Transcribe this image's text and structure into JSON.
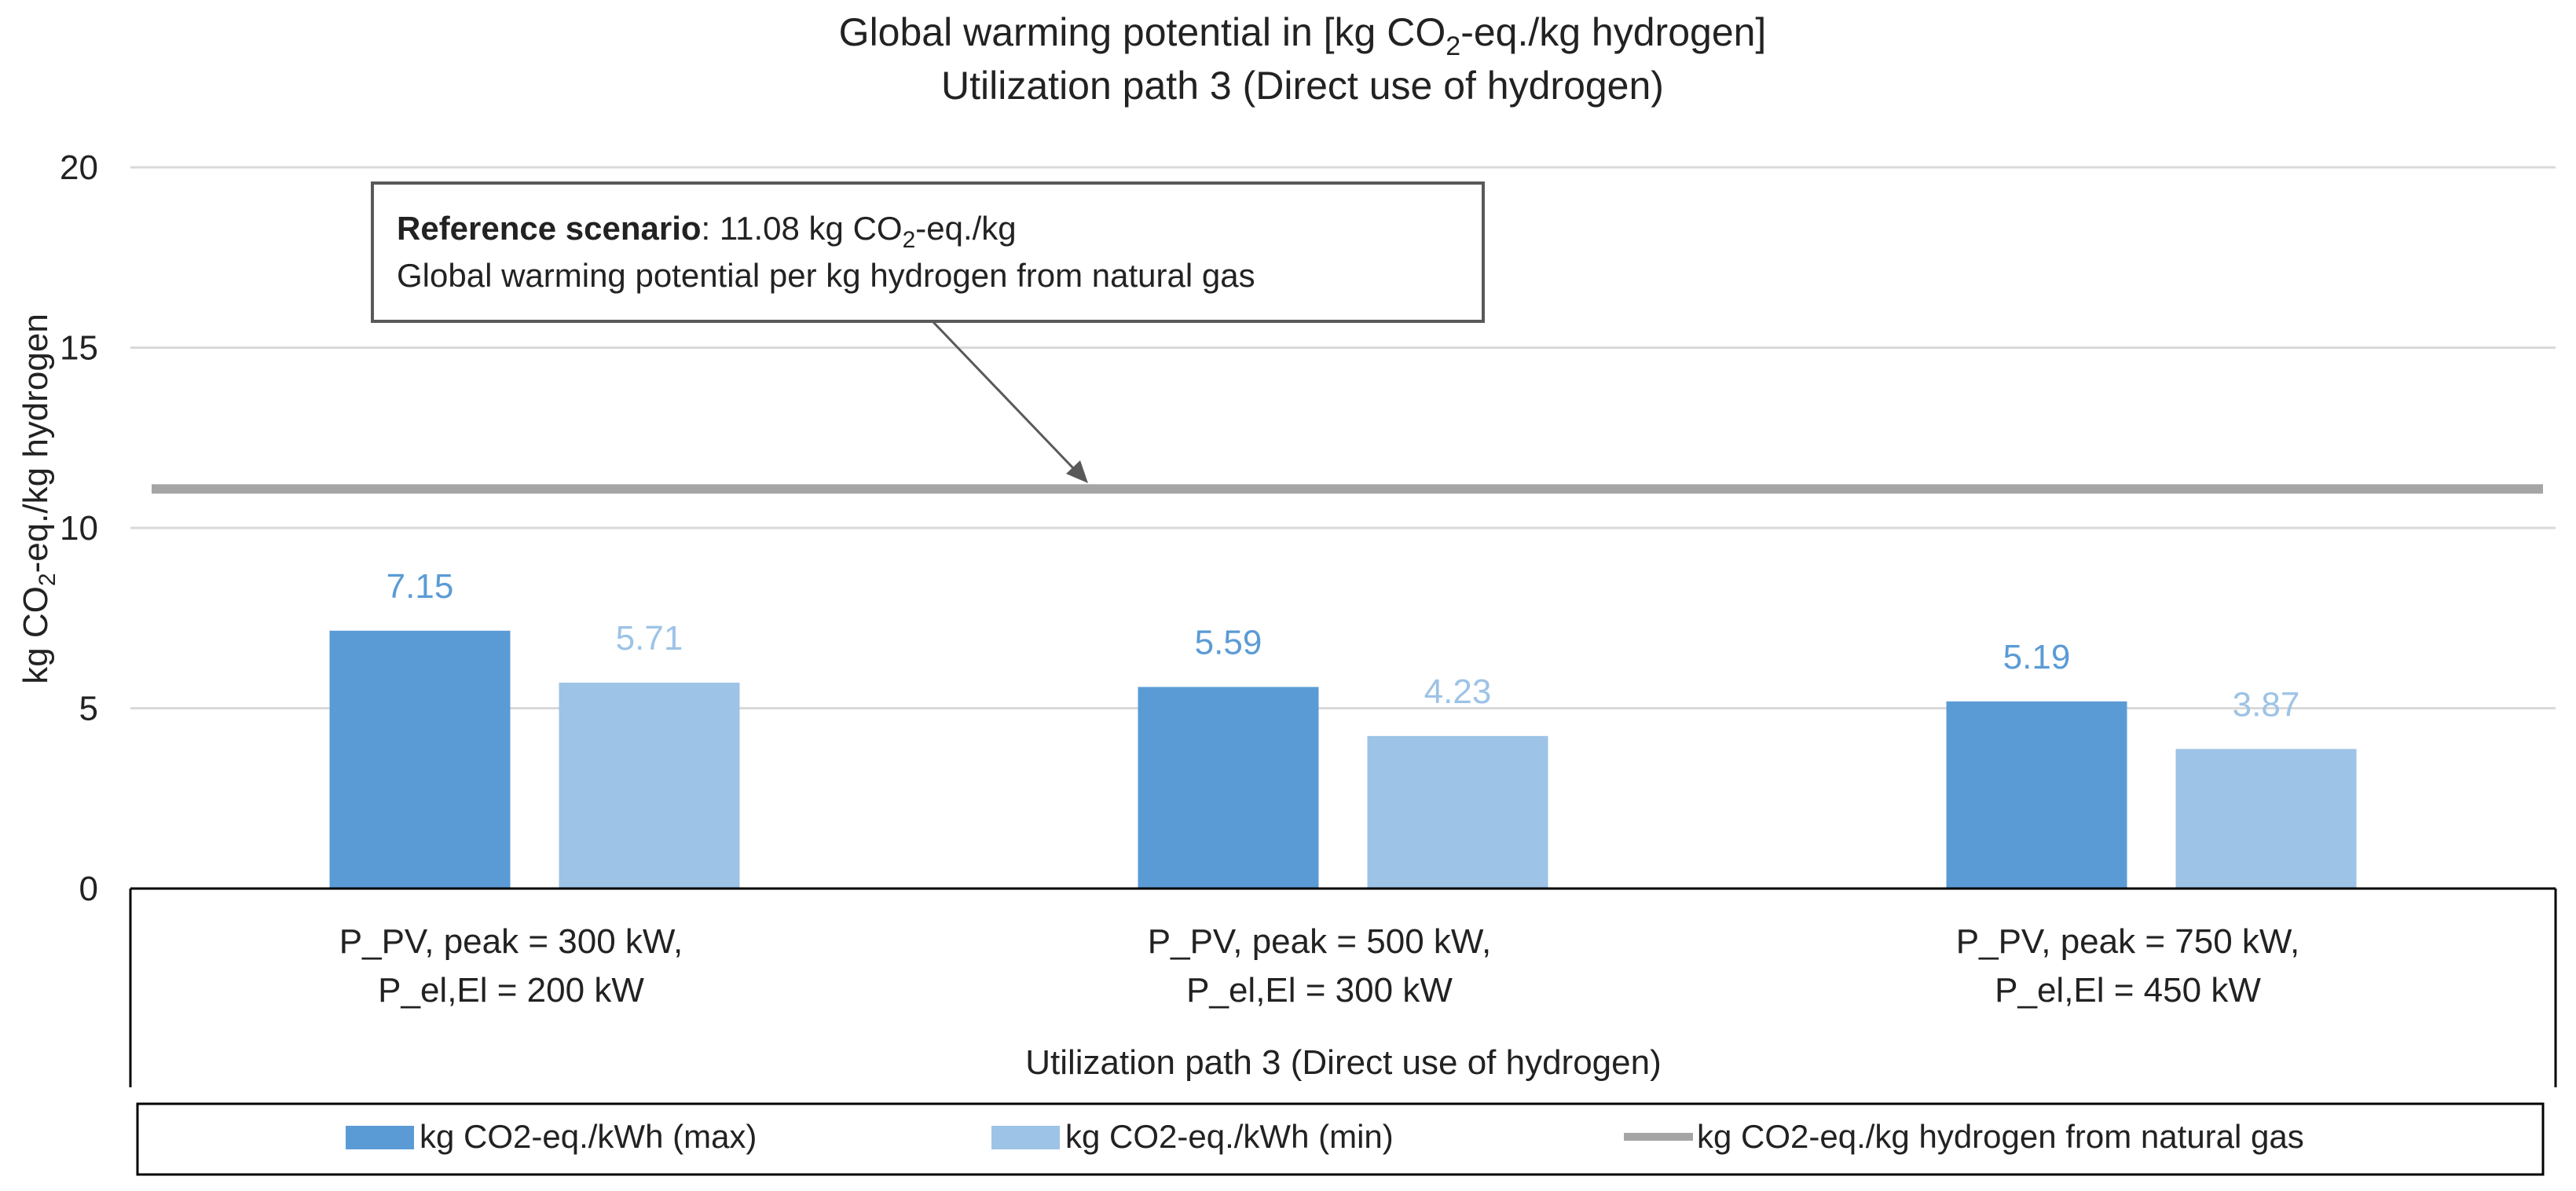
{
  "chart_data": {
    "type": "bar",
    "title": {
      "line1_prefix": "Global warming potential in [kg CO",
      "line1_sub": "2",
      "line1_suffix": "-eq./kg hydrogen]",
      "line2": "Utilization path 3 (Direct use of hydrogen)"
    },
    "ylabel": {
      "prefix": "kg CO",
      "sub": "2",
      "suffix": "-eq./kg hydrogen"
    },
    "xlabel": "Utilization path 3 (Direct use of hydrogen)",
    "ylim": [
      0,
      20
    ],
    "yticks": [
      0,
      5,
      10,
      15,
      20
    ],
    "grid": true,
    "categories": [
      [
        "P_PV, peak = 300 kW,",
        "P_el,El = 200 kW"
      ],
      [
        "P_PV, peak = 500 kW,",
        "P_el,El = 300 kW"
      ],
      [
        "P_PV, peak = 750 kW,",
        "P_el,El = 450 kW"
      ]
    ],
    "series": [
      {
        "name": "kg CO2-eq./kWh (max)",
        "values": [
          7.15,
          5.59,
          5.19
        ],
        "color": "#5b9bd5",
        "labels": [
          "7.15",
          "5.59",
          "5.19"
        ],
        "label_color": "#5b9bd5"
      },
      {
        "name": "kg CO2-eq./kWh (min)",
        "values": [
          5.71,
          4.23,
          3.87
        ],
        "color": "#9dc3e6",
        "labels": [
          "5.71",
          "4.23",
          "3.87"
        ],
        "label_color": "#9dc3e6"
      }
    ],
    "reference_line": {
      "name": "kg CO2-eq./kg hydrogen from natural gas",
      "value": 11.08,
      "color": "#a5a5a5"
    },
    "annotation": {
      "bold": "Reference scenario",
      "text_prefix": ": 11.08 kg CO",
      "text_sub": "2",
      "text_suffix": "-eq./kg",
      "line2": "Global warming potential per kg hydrogen from natural gas"
    },
    "legend_position": "bottom"
  }
}
